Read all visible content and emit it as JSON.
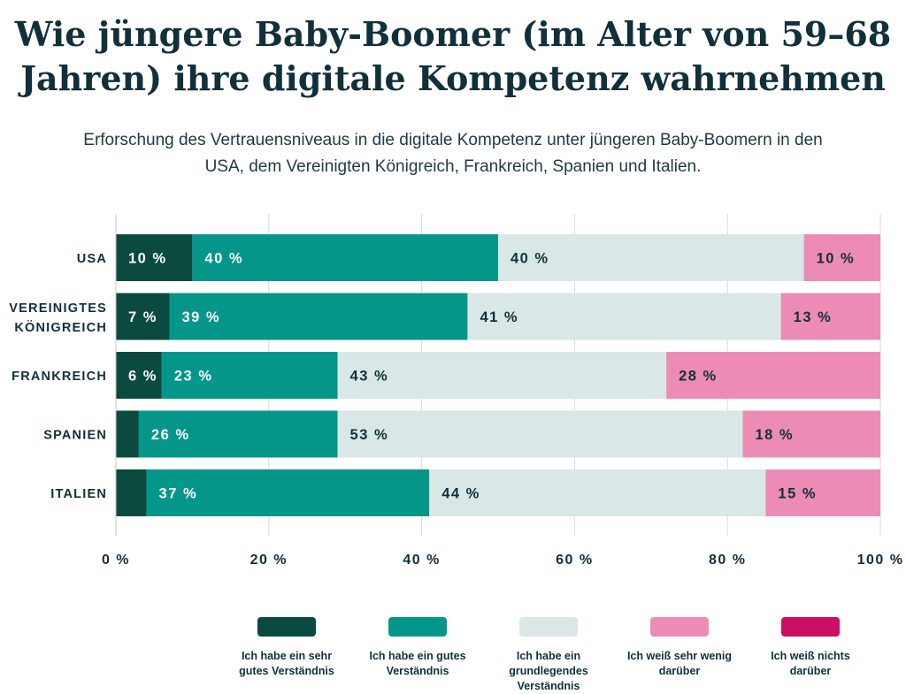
{
  "title": "Wie jüngere Baby-Boomer (im Alter von 59–68 Jahren) ihre digitale Kompetenz wahrnehmen",
  "subtitle": "Erforschung des Vertrauensniveaus in die digitale Kompetenz unter jüngeren Baby-Boomern in den USA, dem Vereinigten Königreich, Frankreich, Spanien und Italien.",
  "chart_data": {
    "type": "bar",
    "orientation": "horizontal",
    "stacked": true,
    "categories": [
      "USA",
      "VEREINIGTES KÖNIGREICH",
      "FRANKREICH",
      "SPANIEN",
      "ITALIEN"
    ],
    "series": [
      {
        "name": "Ich habe ein sehr gutes Verständnis",
        "color": "#0b4a3f",
        "values": [
          10,
          7,
          6,
          3,
          4
        ],
        "labels": [
          "10 %",
          "7 %",
          "6 %",
          "",
          ""
        ]
      },
      {
        "name": "Ich habe ein gutes Verständnis",
        "color": "#05968a",
        "values": [
          40,
          39,
          23,
          26,
          37
        ],
        "labels": [
          "40 %",
          "39 %",
          "23 %",
          "26 %",
          "37 %"
        ]
      },
      {
        "name": "Ich habe ein grundlegendes Verständnis",
        "color": "#d9e8e6",
        "values": [
          40,
          41,
          43,
          53,
          44
        ],
        "labels": [
          "40 %",
          "41 %",
          "43 %",
          "53 %",
          "44 %"
        ]
      },
      {
        "name": "Ich weiß sehr wenig darüber",
        "color": "#ec8cb5",
        "values": [
          10,
          13,
          28,
          18,
          15
        ],
        "labels": [
          "10 %",
          "13 %",
          "28 %",
          "18 %",
          "15 %"
        ]
      },
      {
        "name": "Ich weiß nichts darüber",
        "color": "#cc0f62",
        "values": [
          0,
          0,
          0,
          0,
          0
        ],
        "labels": [
          "",
          "",
          "",
          "",
          ""
        ]
      }
    ],
    "xlim": [
      0,
      100
    ],
    "xticks": [
      "0 %",
      "20 %",
      "40 %",
      "60 %",
      "80 %",
      "100 %"
    ],
    "grid": true,
    "legend_position": "bottom"
  },
  "legend": [
    {
      "lines": [
        "Ich habe ein sehr",
        "gutes Verständnis"
      ],
      "color": "#0b4a3f"
    },
    {
      "lines": [
        "Ich habe ein gutes",
        "Verständnis"
      ],
      "color": "#05968a"
    },
    {
      "lines": [
        "Ich habe ein",
        "grundlegendes",
        "Verständnis"
      ],
      "color": "#d9e8e6"
    },
    {
      "lines": [
        "Ich weiß sehr wenig",
        "darüber"
      ],
      "color": "#ec8cb5"
    },
    {
      "lines": [
        "Ich weiß nichts",
        "darüber"
      ],
      "color": "#cc0f62"
    }
  ],
  "colors": {
    "label_dark": "#10303b",
    "label_light": "#ffffff",
    "grid": "#dadada"
  }
}
